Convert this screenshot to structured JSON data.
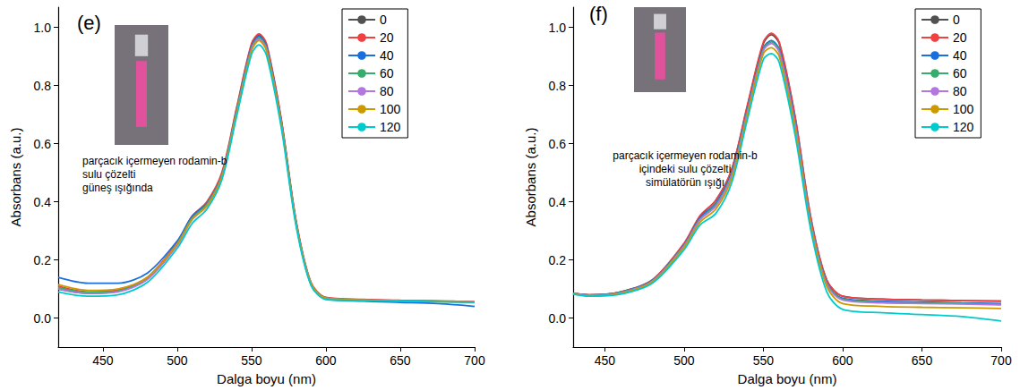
{
  "chart_data": [
    {
      "type": "line",
      "title": "(e)",
      "annotation": [
        "parçacık içermeyen rodamin-b",
        "sulu çözelti",
        "güneş ışığında"
      ],
      "x_label": "Dalga boyu (nm)",
      "y_label": "Absorbans (a.u.)",
      "x": [
        420,
        440,
        460,
        480,
        500,
        510,
        520,
        530,
        540,
        550,
        555,
        560,
        570,
        580,
        590,
        600,
        625,
        650,
        675,
        700
      ],
      "xlim": [
        420,
        700
      ],
      "xticks": [
        450,
        500,
        550,
        600,
        650,
        700
      ],
      "ylim": [
        -0.1,
        1.07
      ],
      "yticks": [
        {
          "value": 0,
          "label": "0.0"
        },
        0.2,
        0.4,
        0.6,
        0.8,
        {
          "value": 1,
          "label": "1.0"
        }
      ],
      "grid": false,
      "legend": "top-right",
      "series": [
        {
          "name": "0",
          "color": "#515151",
          "values": [
            0.1,
            0.085,
            0.092,
            0.135,
            0.255,
            0.345,
            0.395,
            0.495,
            0.72,
            0.94,
            0.975,
            0.94,
            0.68,
            0.33,
            0.12,
            0.07,
            0.063,
            0.06,
            0.058,
            0.055
          ]
        },
        {
          "name": "20",
          "color": "#f14040",
          "values": [
            0.11,
            0.09,
            0.097,
            0.14,
            0.26,
            0.35,
            0.4,
            0.5,
            0.725,
            0.945,
            0.978,
            0.945,
            0.685,
            0.335,
            0.122,
            0.071,
            0.064,
            0.061,
            0.059,
            0.056
          ]
        },
        {
          "name": "40",
          "color": "#1a6fdf",
          "values": [
            0.14,
            0.12,
            0.12,
            0.155,
            0.265,
            0.35,
            0.395,
            0.49,
            0.715,
            0.935,
            0.97,
            0.935,
            0.675,
            0.325,
            0.115,
            0.065,
            0.058,
            0.054,
            0.05,
            0.04
          ]
        },
        {
          "name": "60",
          "color": "#37ad6b",
          "values": [
            0.105,
            0.088,
            0.093,
            0.136,
            0.255,
            0.343,
            0.392,
            0.49,
            0.713,
            0.93,
            0.965,
            0.93,
            0.673,
            0.327,
            0.119,
            0.069,
            0.062,
            0.059,
            0.057,
            0.054
          ]
        },
        {
          "name": "80",
          "color": "#b177de",
          "values": [
            0.1,
            0.085,
            0.09,
            0.133,
            0.25,
            0.338,
            0.387,
            0.486,
            0.708,
            0.926,
            0.96,
            0.926,
            0.67,
            0.325,
            0.118,
            0.068,
            0.062,
            0.059,
            0.057,
            0.054
          ]
        },
        {
          "name": "100",
          "color": "#cc9900",
          "values": [
            0.115,
            0.095,
            0.1,
            0.14,
            0.255,
            0.34,
            0.385,
            0.484,
            0.705,
            0.92,
            0.955,
            0.92,
            0.667,
            0.323,
            0.118,
            0.068,
            0.062,
            0.059,
            0.057,
            0.054
          ]
        },
        {
          "name": "120",
          "color": "#00cbcc",
          "values": [
            0.09,
            0.075,
            0.08,
            0.123,
            0.24,
            0.325,
            0.375,
            0.475,
            0.695,
            0.908,
            0.94,
            0.905,
            0.655,
            0.315,
            0.112,
            0.064,
            0.06,
            0.058,
            0.056,
            0.054
          ]
        }
      ]
    },
    {
      "type": "line",
      "title": "(f)",
      "annotation": [
        "parçacık içermeyen rodamin-b",
        "içindeki sulu çözelti",
        "simülatörün ışığı"
      ],
      "x_label": "Dalga boyu (nm)",
      "y_label": "Absorbans (a.u.)",
      "x": [
        430,
        440,
        460,
        480,
        500,
        510,
        520,
        530,
        540,
        550,
        555,
        560,
        570,
        580,
        590,
        600,
        625,
        650,
        675,
        700
      ],
      "xlim": [
        430,
        700
      ],
      "xticks": [
        450,
        500,
        550,
        600,
        650,
        700
      ],
      "ylim": [
        -0.1,
        1.07
      ],
      "yticks": [
        {
          "value": 0,
          "label": "0.0"
        },
        0.2,
        0.4,
        0.6,
        0.8,
        {
          "value": 1,
          "label": "1.0"
        }
      ],
      "grid": false,
      "legend": "top-right",
      "series": [
        {
          "name": "0",
          "color": "#515151",
          "values": [
            0.085,
            0.08,
            0.09,
            0.13,
            0.255,
            0.35,
            0.405,
            0.51,
            0.73,
            0.945,
            0.975,
            0.945,
            0.69,
            0.34,
            0.13,
            0.075,
            0.065,
            0.062,
            0.06,
            0.058
          ]
        },
        {
          "name": "20",
          "color": "#f14040",
          "values": [
            0.085,
            0.08,
            0.09,
            0.132,
            0.258,
            0.352,
            0.405,
            0.512,
            0.735,
            0.95,
            0.98,
            0.95,
            0.695,
            0.345,
            0.13,
            0.075,
            0.065,
            0.062,
            0.06,
            0.058
          ]
        },
        {
          "name": "40",
          "color": "#1a6fdf",
          "values": [
            0.085,
            0.079,
            0.089,
            0.13,
            0.252,
            0.345,
            0.395,
            0.5,
            0.72,
            0.93,
            0.955,
            0.925,
            0.675,
            0.33,
            0.12,
            0.068,
            0.058,
            0.055,
            0.052,
            0.05
          ]
        },
        {
          "name": "60",
          "color": "#37ad6b",
          "values": [
            0.085,
            0.078,
            0.088,
            0.128,
            0.25,
            0.34,
            0.39,
            0.495,
            0.715,
            0.925,
            0.95,
            0.92,
            0.67,
            0.328,
            0.118,
            0.065,
            0.055,
            0.052,
            0.05,
            0.047
          ]
        },
        {
          "name": "80",
          "color": "#b177de",
          "values": [
            0.084,
            0.078,
            0.087,
            0.127,
            0.248,
            0.338,
            0.385,
            0.49,
            0.71,
            0.92,
            0.945,
            0.915,
            0.665,
            0.325,
            0.115,
            0.062,
            0.052,
            0.05,
            0.048,
            0.045
          ]
        },
        {
          "name": "100",
          "color": "#cc9900",
          "values": [
            0.083,
            0.077,
            0.085,
            0.125,
            0.243,
            0.33,
            0.375,
            0.48,
            0.7,
            0.91,
            0.93,
            0.9,
            0.65,
            0.315,
            0.108,
            0.05,
            0.04,
            0.037,
            0.035,
            0.033
          ]
        },
        {
          "name": "120",
          "color": "#00cbcc",
          "values": [
            0.082,
            0.075,
            0.082,
            0.12,
            0.235,
            0.32,
            0.36,
            0.465,
            0.685,
            0.89,
            0.91,
            0.88,
            0.63,
            0.3,
            0.09,
            0.03,
            0.018,
            0.012,
            0.005,
            -0.01
          ]
        }
      ]
    }
  ]
}
